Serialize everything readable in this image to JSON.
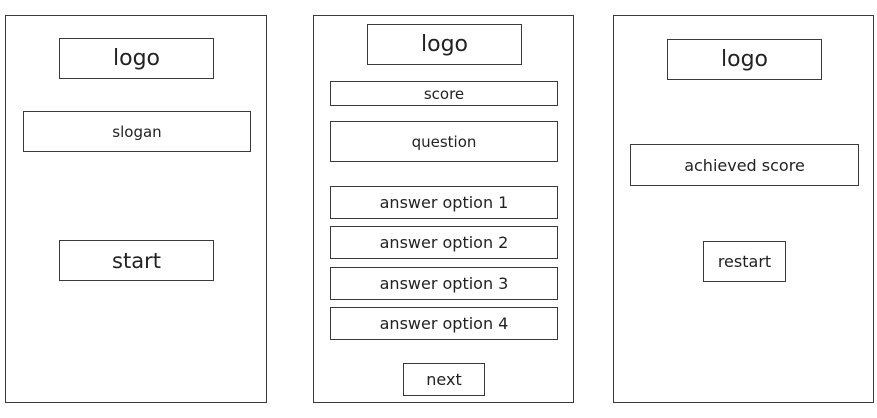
{
  "start_screen": {
    "logo": "logo",
    "slogan": "slogan",
    "start_label": "start"
  },
  "quiz_screen": {
    "logo": "logo",
    "score": "score",
    "question": "question",
    "answers": [
      "answer option 1",
      "answer option 2",
      "answer option 3",
      "answer option 4"
    ],
    "next_label": "next"
  },
  "result_screen": {
    "logo": "logo",
    "achieved_score": "achieved score",
    "restart_label": "restart"
  }
}
